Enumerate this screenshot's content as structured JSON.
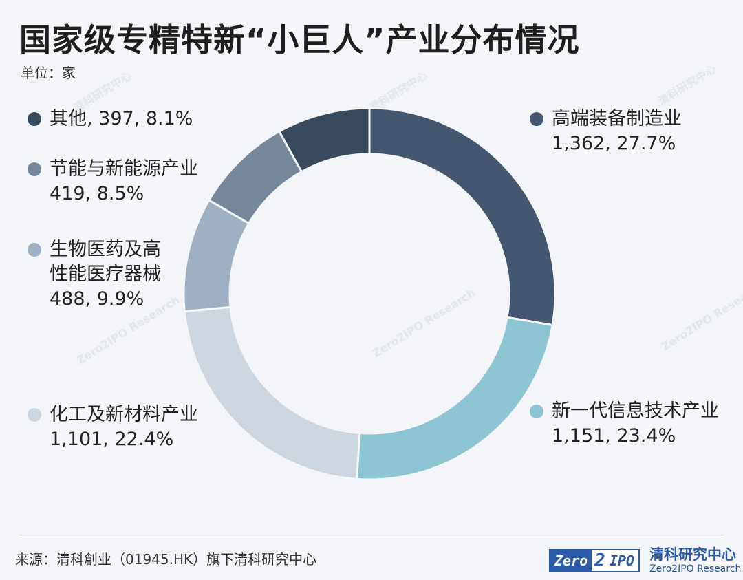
{
  "title": "国家级专精特新“小巨人”产业分布情况",
  "unit": "单位：家",
  "source": "来源：清科創业（01945.HK）旗下清科研究中心",
  "logo": {
    "mark_part1": "Zero",
    "mark_part2": "2",
    "mark_part3": "IPO",
    "name_cn": "清科研究中心",
    "name_en": "Zero2IPO Research"
  },
  "watermark": {
    "cn": "清科研究中心",
    "en": "Zero2IPO Research"
  },
  "chart_data": {
    "type": "pie",
    "donut": true,
    "title": "国家级专精特新“小巨人”产业分布情况",
    "unit": "家",
    "slices": [
      {
        "name": "高端装备制造业",
        "value": 1362,
        "value_label": "1,362",
        "percent_label": "27.7%",
        "color": "#44576e"
      },
      {
        "name": "新一代信息技术产业",
        "value": 1151,
        "value_label": "1,151",
        "percent_label": "23.4%",
        "color": "#8ec5d2"
      },
      {
        "name": "化工及新材料产业",
        "value": 1101,
        "value_label": "1,101",
        "percent_label": "22.4%",
        "color": "#cdd6df"
      },
      {
        "name": "生物医药及高\n性能医疗器械",
        "value": 488,
        "value_label": "488",
        "percent_label": "9.9%",
        "color": "#9fb0c2"
      },
      {
        "name": "节能与新能源产业",
        "value": 419,
        "value_label": "419",
        "percent_label": "8.5%",
        "color": "#76879a"
      },
      {
        "name": "其他",
        "value": 397,
        "value_label": "397",
        "percent_label": "8.1%",
        "color": "#394a5c"
      }
    ]
  }
}
